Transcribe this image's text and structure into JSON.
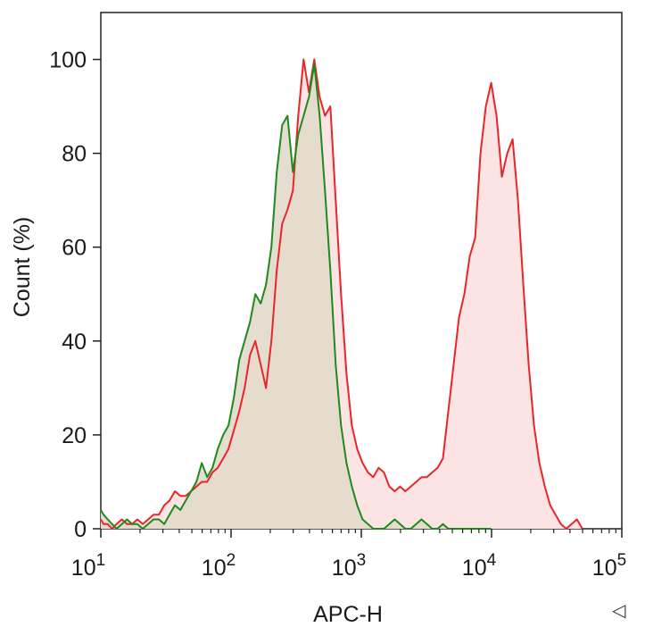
{
  "chart_data": {
    "type": "area",
    "title": "",
    "xlabel": "APC-H",
    "ylabel": "Count (%)",
    "x_scale": "log",
    "xlim": [
      10,
      100000
    ],
    "ylim": [
      0,
      110
    ],
    "y_ticks": [
      0,
      20,
      40,
      60,
      80,
      100
    ],
    "y_tick_labels": [
      "0",
      "20",
      "40",
      "60",
      "80",
      "100"
    ],
    "x_ticks": [
      {
        "value": 10,
        "base": "10",
        "exp": "1"
      },
      {
        "value": 100,
        "base": "10",
        "exp": "2"
      },
      {
        "value": 1000,
        "base": "10",
        "exp": "3"
      },
      {
        "value": 10000,
        "base": "10",
        "exp": "4"
      },
      {
        "value": 100000,
        "base": "10",
        "exp": "5"
      }
    ],
    "grid": false,
    "legend": "none",
    "corner_glyph": "◁",
    "series": [
      {
        "color": "#e8262a",
        "fill": "#fde4e4",
        "points": [
          [
            10.0,
            2
          ],
          [
            10.5,
            1
          ],
          [
            11.3,
            1
          ],
          [
            12.2,
            0
          ],
          [
            13.2,
            1
          ],
          [
            14.5,
            2
          ],
          [
            15.9,
            1
          ],
          [
            17.4,
            1
          ],
          [
            19.1,
            2
          ],
          [
            21.0,
            1
          ],
          [
            23.1,
            2
          ],
          [
            25.4,
            3
          ],
          [
            27.9,
            3
          ],
          [
            30.7,
            5
          ],
          [
            33.7,
            6
          ],
          [
            37.1,
            8
          ],
          [
            40.8,
            7
          ],
          [
            44.8,
            7
          ],
          [
            49.3,
            8
          ],
          [
            54.2,
            9
          ],
          [
            59.6,
            10
          ],
          [
            65.5,
            10
          ],
          [
            72.0,
            12
          ],
          [
            79.1,
            13
          ],
          [
            87.0,
            15
          ],
          [
            95.6,
            17
          ],
          [
            105.1,
            21
          ],
          [
            115.6,
            25
          ],
          [
            127.0,
            30
          ],
          [
            139.7,
            37
          ],
          [
            153.6,
            40
          ],
          [
            168.8,
            35
          ],
          [
            185.6,
            30
          ],
          [
            204.1,
            40
          ],
          [
            224.4,
            55
          ],
          [
            246.7,
            65
          ],
          [
            271.2,
            68
          ],
          [
            298.2,
            72
          ],
          [
            327.8,
            88
          ],
          [
            360.4,
            100
          ],
          [
            396.2,
            93
          ],
          [
            435.6,
            100
          ],
          [
            478.9,
            92
          ],
          [
            526.5,
            88
          ],
          [
            578.8,
            90
          ],
          [
            636.4,
            70
          ],
          [
            699.6,
            50
          ],
          [
            769.2,
            33
          ],
          [
            845.6,
            22
          ],
          [
            929.7,
            17
          ],
          [
            1022.1,
            14
          ],
          [
            1123.7,
            12
          ],
          [
            1235.4,
            11
          ],
          [
            1358.2,
            13
          ],
          [
            1493.1,
            12
          ],
          [
            1641.5,
            9
          ],
          [
            1804.6,
            8
          ],
          [
            1984.0,
            9
          ],
          [
            2181.2,
            8
          ],
          [
            2398.0,
            9
          ],
          [
            2636.3,
            10
          ],
          [
            2898.3,
            11
          ],
          [
            3186.4,
            11
          ],
          [
            3503.0,
            12
          ],
          [
            3851.3,
            13
          ],
          [
            4234.0,
            15
          ],
          [
            4654.8,
            25
          ],
          [
            5117.4,
            35
          ],
          [
            5626.1,
            45
          ],
          [
            6185.2,
            50
          ],
          [
            6800.0,
            58
          ],
          [
            7475.8,
            62
          ],
          [
            8218.8,
            80
          ],
          [
            9035.6,
            90
          ],
          [
            9933.7,
            95
          ],
          [
            10920.9,
            88
          ],
          [
            12006.3,
            75
          ],
          [
            13199.5,
            80
          ],
          [
            14511.3,
            83
          ],
          [
            15953.6,
            70
          ],
          [
            17539.2,
            52
          ],
          [
            19282.3,
            35
          ],
          [
            21198.7,
            22
          ],
          [
            23305.6,
            14
          ],
          [
            25621.9,
            9
          ],
          [
            28168.3,
            5
          ],
          [
            30967.9,
            3
          ],
          [
            34045.6,
            1
          ],
          [
            37429.2,
            0
          ],
          [
            41149.1,
            1
          ],
          [
            45238.8,
            2
          ],
          [
            49735.0,
            0
          ]
        ]
      },
      {
        "color": "#1e8a1e",
        "fill": "#e4dbcc",
        "points": [
          [
            10.0,
            4
          ],
          [
            10.5,
            3
          ],
          [
            11.3,
            2
          ],
          [
            12.2,
            1
          ],
          [
            13.2,
            0
          ],
          [
            14.5,
            1
          ],
          [
            15.9,
            2
          ],
          [
            17.4,
            1
          ],
          [
            19.1,
            1
          ],
          [
            21.0,
            0
          ],
          [
            23.1,
            1
          ],
          [
            25.4,
            2
          ],
          [
            27.9,
            2
          ],
          [
            30.7,
            1
          ],
          [
            33.7,
            3
          ],
          [
            37.1,
            5
          ],
          [
            40.8,
            4
          ],
          [
            44.8,
            6
          ],
          [
            49.3,
            8
          ],
          [
            54.2,
            10
          ],
          [
            59.6,
            14
          ],
          [
            65.5,
            11
          ],
          [
            72.0,
            13
          ],
          [
            79.1,
            17
          ],
          [
            87.0,
            20
          ],
          [
            95.6,
            22
          ],
          [
            105.1,
            28
          ],
          [
            115.6,
            36
          ],
          [
            127.0,
            40
          ],
          [
            139.7,
            44
          ],
          [
            153.6,
            50
          ],
          [
            168.8,
            48
          ],
          [
            185.6,
            52
          ],
          [
            204.1,
            60
          ],
          [
            224.4,
            76
          ],
          [
            246.7,
            86
          ],
          [
            271.2,
            88
          ],
          [
            298.2,
            76
          ],
          [
            327.8,
            84
          ],
          [
            360.4,
            88
          ],
          [
            396.2,
            92
          ],
          [
            435.6,
            99
          ],
          [
            478.9,
            88
          ],
          [
            526.5,
            72
          ],
          [
            578.8,
            55
          ],
          [
            636.4,
            35
          ],
          [
            699.6,
            22
          ],
          [
            769.2,
            14
          ],
          [
            845.6,
            9
          ],
          [
            929.7,
            5
          ],
          [
            1022.1,
            2
          ],
          [
            1123.7,
            1
          ],
          [
            1235.4,
            0
          ],
          [
            1358.2,
            0
          ],
          [
            1493.1,
            0
          ],
          [
            1641.5,
            1
          ],
          [
            1804.6,
            2
          ],
          [
            1984.0,
            1
          ],
          [
            2181.2,
            0
          ],
          [
            2398.0,
            0
          ],
          [
            2636.3,
            1
          ],
          [
            2898.3,
            2
          ],
          [
            3186.4,
            1
          ],
          [
            3503.0,
            0
          ],
          [
            3851.3,
            0
          ],
          [
            4234.0,
            1
          ],
          [
            4654.8,
            0
          ],
          [
            5117.4,
            0
          ],
          [
            5626.1,
            0
          ],
          [
            6185.2,
            0
          ],
          [
            6800.0,
            0
          ],
          [
            7475.8,
            0
          ],
          [
            8218.8,
            0
          ],
          [
            9035.6,
            0
          ],
          [
            9933.7,
            0
          ]
        ]
      }
    ]
  }
}
